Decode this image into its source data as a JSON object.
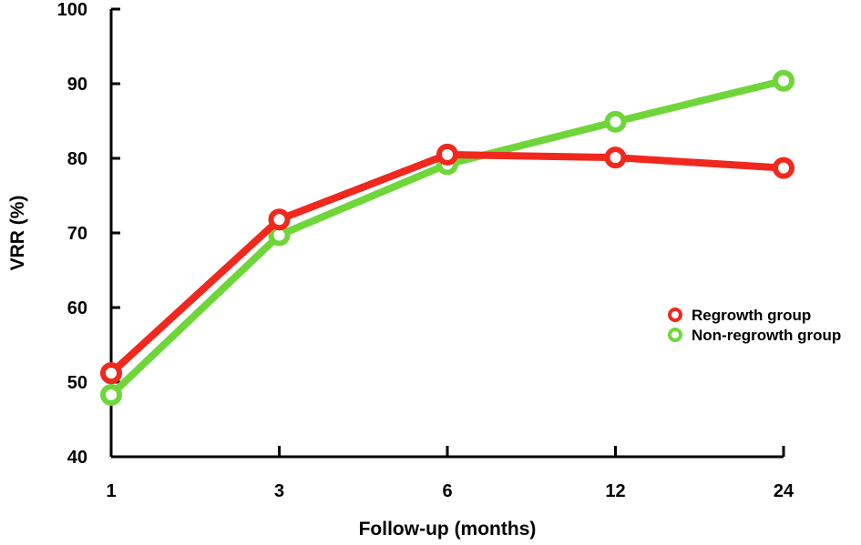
{
  "chart_data": {
    "type": "line",
    "categories": [
      "1",
      "3",
      "6",
      "12",
      "24"
    ],
    "xlabel": "Follow-up (months)",
    "ylabel": "VRR (%)",
    "ylim": [
      40,
      100
    ],
    "yticks": [
      40,
      50,
      60,
      70,
      80,
      90,
      100
    ],
    "grid": false,
    "legend_position": "right",
    "series": [
      {
        "name": "Regrowth group",
        "color": "#f0281e",
        "values": [
          51.2,
          71.8,
          80.5,
          80.1,
          78.7
        ]
      },
      {
        "name": "Non-regrowth group",
        "color": "#6fd63a",
        "values": [
          48.3,
          69.7,
          79.2,
          84.9,
          90.4
        ]
      }
    ]
  }
}
